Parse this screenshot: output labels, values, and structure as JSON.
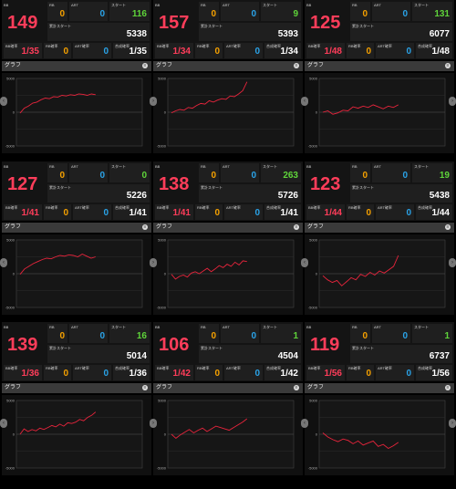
{
  "colors": {
    "accent_red": "#ff3d5a",
    "orange": "#f5a000",
    "blue": "#2aa3e8",
    "green": "#5fd43a",
    "graph_line": "#e8243c"
  },
  "labels": {
    "bb": "BB",
    "rb": "RB",
    "art": "ART",
    "start": "スタート",
    "total_start": "累計スタート",
    "bb_rate": "BB確率",
    "rb_rate": "RB確率",
    "art_rate": "ART確率",
    "combined_rate": "合成確率",
    "graph": "グラフ",
    "axis_top": "5000",
    "axis_zero": "0",
    "axis_bottom": "-5000"
  },
  "units": [
    {
      "bb": "149",
      "rb": "0",
      "art": "0",
      "start": "116",
      "start_color": "green",
      "total": "5338",
      "bb_rate": "1/35",
      "rb_rate": "0",
      "art_rate": "0",
      "combined": "1/35",
      "graph": [
        -120,
        600,
        900,
        1350,
        1500,
        1850,
        2100,
        2000,
        2300,
        2250,
        2500,
        2400,
        2600,
        2500,
        2700,
        2650,
        2500,
        2700,
        2600
      ]
    },
    {
      "bb": "157",
      "rb": "0",
      "art": "0",
      "start": "9",
      "start_color": "green",
      "total": "5393",
      "bb_rate": "1/34",
      "rb_rate": "0",
      "art_rate": "0",
      "combined": "1/34",
      "graph": [
        -100,
        200,
        400,
        300,
        700,
        600,
        1000,
        1300,
        1200,
        1700,
        1500,
        1800,
        2000,
        1900,
        2400,
        2300,
        2700,
        3200,
        4500
      ]
    },
    {
      "bb": "125",
      "rb": "0",
      "art": "0",
      "start": "131",
      "start_color": "green",
      "total": "6077",
      "bb_rate": "1/48",
      "rb_rate": "0",
      "art_rate": "0",
      "combined": "1/48",
      "graph": [
        0,
        200,
        -300,
        -100,
        300,
        200,
        800,
        600,
        900,
        700,
        1100,
        800,
        500,
        900,
        700,
        1100
      ]
    },
    {
      "bb": "127",
      "rb": "0",
      "art": "0",
      "start": "0",
      "start_color": "green",
      "total": "5226",
      "bb_rate": "1/41",
      "rb_rate": "0",
      "art_rate": "0",
      "combined": "1/41",
      "graph": [
        -100,
        700,
        1100,
        1500,
        1800,
        2100,
        2300,
        2200,
        2500,
        2700,
        2600,
        2800,
        2700,
        2500,
        2900,
        2600,
        2300,
        2500
      ]
    },
    {
      "bb": "138",
      "rb": "0",
      "art": "0",
      "start": "263",
      "start_color": "green",
      "total": "5726",
      "bb_rate": "1/41",
      "rb_rate": "0",
      "art_rate": "0",
      "combined": "1/41",
      "graph": [
        -100,
        -800,
        -400,
        -200,
        -500,
        100,
        300,
        0,
        400,
        800,
        300,
        700,
        1200,
        900,
        1400,
        1100,
        1700,
        1300,
        1900,
        1800
      ]
    },
    {
      "bb": "123",
      "rb": "0",
      "art": "0",
      "start": "19",
      "start_color": "green",
      "total": "5438",
      "bb_rate": "1/44",
      "rb_rate": "0",
      "art_rate": "0",
      "combined": "1/44",
      "graph": [
        -300,
        -900,
        -1300,
        -1000,
        -1800,
        -1200,
        -600,
        -900,
        -100,
        -400,
        200,
        -200,
        400,
        100,
        600,
        1100,
        2700
      ]
    },
    {
      "bb": "139",
      "rb": "0",
      "art": "0",
      "start": "16",
      "start_color": "green",
      "total": "5014",
      "bb_rate": "1/36",
      "rb_rate": "0",
      "art_rate": "0",
      "combined": "1/36",
      "graph": [
        0,
        800,
        400,
        700,
        500,
        900,
        700,
        1000,
        1300,
        1100,
        1500,
        1200,
        1700,
        1600,
        1800,
        2200,
        2000,
        2500,
        2800,
        3300
      ]
    },
    {
      "bb": "106",
      "rb": "0",
      "art": "0",
      "start": "1",
      "start_color": "green",
      "total": "4504",
      "bb_rate": "1/42",
      "rb_rate": "0",
      "art_rate": "0",
      "combined": "1/42",
      "graph": [
        0,
        -600,
        -100,
        300,
        700,
        200,
        600,
        900,
        400,
        800,
        1200,
        1000,
        800,
        600,
        1000,
        1400,
        1800,
        2300
      ]
    },
    {
      "bb": "119",
      "rb": "0",
      "art": "0",
      "start": "1",
      "start_color": "green",
      "total": "6737",
      "bb_rate": "1/56",
      "rb_rate": "0",
      "art_rate": "0",
      "combined": "1/56",
      "graph": [
        200,
        -400,
        -800,
        -1100,
        -700,
        -900,
        -1400,
        -1000,
        -1600,
        -1300,
        -1000,
        -1800,
        -1500,
        -2100,
        -1700,
        -1200
      ]
    }
  ]
}
